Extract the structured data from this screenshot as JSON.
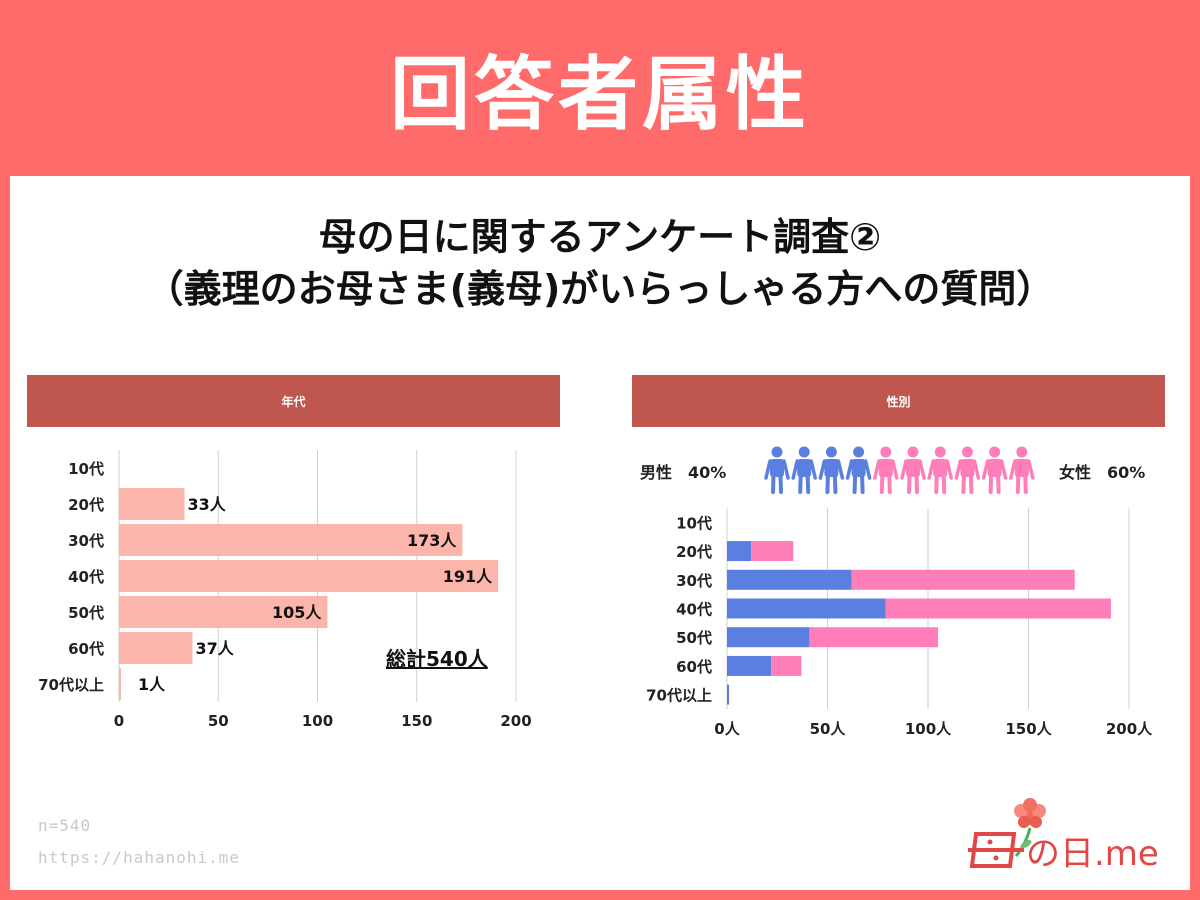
{
  "header": {
    "title": "回答者属性"
  },
  "subtitle": {
    "line1": "母の日に関するアンケート調査②",
    "line2": "（義理のお母さま(義母)がいらっしゃる方への質問）"
  },
  "colors": {
    "accent": "#ff6b6b",
    "header_bar": "#c0574f",
    "age_bar": "#fbb5aa",
    "male": "#5b7fe0",
    "female": "#ff7eb9"
  },
  "chart_data": [
    {
      "type": "bar",
      "orientation": "horizontal",
      "title": "年代",
      "categories": [
        "10代",
        "20代",
        "30代",
        "40代",
        "50代",
        "60代",
        "70代以上"
      ],
      "values": [
        0,
        33,
        173,
        191,
        105,
        37,
        1
      ],
      "data_labels": [
        "",
        "33人",
        "173人",
        "191人",
        "105人",
        "37人",
        "1人"
      ],
      "xticks": [
        "0",
        "50",
        "100",
        "150",
        "200"
      ],
      "xlim": [
        0,
        200
      ],
      "grid": true,
      "annotation": "総計540人"
    },
    {
      "type": "bar",
      "orientation": "horizontal",
      "stacked": true,
      "title": "性別",
      "categories": [
        "10代",
        "20代",
        "30代",
        "40代",
        "50代",
        "60代",
        "70代以上"
      ],
      "series": [
        {
          "values": [
            0,
            12,
            62,
            79,
            41,
            22,
            1
          ],
          "color": "#5b7fe0"
        },
        {
          "values": [
            0,
            21,
            111,
            112,
            64,
            15,
            0
          ],
          "color": "#ff7eb9"
        }
      ],
      "xticks": [
        "0人",
        "50人",
        "100人",
        "150人",
        "200人"
      ],
      "xlim": [
        0,
        200
      ],
      "grid": true,
      "legend": {
        "male": "男性　40%",
        "female": "女性　60%",
        "male_figures": 4,
        "female_figures": 6
      }
    }
  ],
  "footer": {
    "n": "n=540",
    "url": "https://hahanohi.me"
  },
  "logo": {
    "text": "の日.me",
    "icon": "mother-mark-icon",
    "flower": "carnation-icon"
  }
}
